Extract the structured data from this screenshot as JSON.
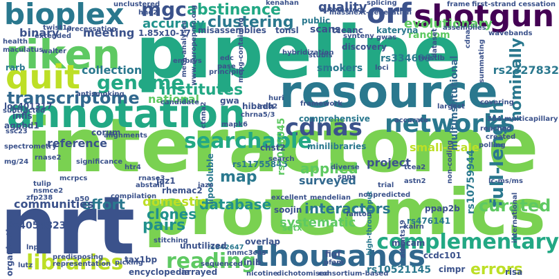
{
  "words": [
    {
      "text": "interactome",
      "color": "#7ad151"
    },
    {
      "text": "pipeline",
      "color": "#22a884"
    },
    {
      "text": "proteomics",
      "color": "#7ad151"
    },
    {
      "text": "nrt",
      "color": "#3b528b"
    },
    {
      "text": "resource",
      "color": "#2a788e"
    },
    {
      "text": "annotation",
      "color": "#22a884"
    },
    {
      "text": "riken",
      "color": "#5ec962"
    },
    {
      "text": "shotgun",
      "color": "#440154"
    },
    {
      "text": "bioplex",
      "color": "#2a788e"
    },
    {
      "text": "thousands",
      "color": "#31688e"
    },
    {
      "text": "quit",
      "color": "#bddf26"
    },
    {
      "text": "networks",
      "color": "#2a788e"
    },
    {
      "text": "orf",
      "color": "#3b528b"
    },
    {
      "text": "cdnas",
      "color": "#3b528b"
    },
    {
      "text": "genome",
      "color": "#22a884"
    },
    {
      "text": "searchable",
      "color": "#22a884"
    },
    {
      "text": "complementary",
      "color": "#22a884"
    },
    {
      "text": "libraries",
      "color": "#bddf26"
    },
    {
      "text": "reading",
      "color": "#5ec962"
    },
    {
      "text": "mgc",
      "color": "#3b528b"
    },
    {
      "text": "transcriptome",
      "color": "#31688e"
    },
    {
      "text": "abstinence",
      "color": "#22a884"
    },
    {
      "text": "clustering",
      "color": "#2a788e"
    },
    {
      "text": "quality",
      "color": "#3b528b"
    },
    {
      "text": "institutes",
      "color": "#22a884"
    },
    {
      "text": "full-length",
      "color": "#2a788e"
    },
    {
      "text": "nominally",
      "color": "#2a788e"
    },
    {
      "text": "accuracy",
      "color": "#21918c"
    },
    {
      "text": "curated",
      "color": "#5ec962"
    },
    {
      "text": "interactors",
      "color": "#2a788e"
    },
    {
      "text": "database",
      "color": "#21918c"
    },
    {
      "text": "effort",
      "color": "#2a788e"
    },
    {
      "text": "map",
      "color": "#2a788e"
    },
    {
      "text": "clones",
      "color": "#21918c"
    },
    {
      "text": "pairs",
      "color": "#21918c"
    },
    {
      "text": "applied",
      "color": "#5ec962"
    },
    {
      "text": "systematic",
      "color": "#5ec962"
    },
    {
      "text": "domestic",
      "color": "#bddf26"
    },
    {
      "text": "errors",
      "color": "#bddf26"
    },
    {
      "text": "binary",
      "color": "#3b528b"
    },
    {
      "text": "meeting",
      "color": "#3b528b"
    },
    {
      "text": "evolutionary",
      "color": "#5ec962"
    },
    {
      "text": "collection",
      "color": "#2a788e"
    },
    {
      "text": "national",
      "color": "#5ec962"
    },
    {
      "text": "reference",
      "color": "#3b528b"
    },
    {
      "text": "communities",
      "color": "#3b528b"
    },
    {
      "text": "surveyed",
      "color": "#31688e"
    },
    {
      "text": "smokers",
      "color": "#2a788e"
    },
    {
      "text": "scans",
      "color": "#3b528b"
    },
    {
      "text": "random",
      "color": "#5ec962"
    },
    {
      "text": "small-scale",
      "color": "#bddf26"
    },
    {
      "text": "project",
      "color": "#3b528b"
    },
    {
      "text": "comprehensive",
      "color": "#2a788e"
    },
    {
      "text": "multiinstitutional",
      "color": "#31688e"
    },
    {
      "text": "rs2327832",
      "color": "#2a788e"
    },
    {
      "text": "rs334699",
      "color": "#2a788e"
    },
    {
      "text": "rs10759944",
      "color": "#2a788e"
    },
    {
      "text": "rs11755845",
      "color": "#2a788e"
    },
    {
      "text": "rs2046045",
      "color": "#5ec962"
    },
    {
      "text": "rs4054823",
      "color": "#3b528b"
    },
    {
      "text": "rs476141",
      "color": "#2a788e"
    },
    {
      "text": "rs842647",
      "color": "#2a788e"
    },
    {
      "text": "rs10521145",
      "color": "#2a788e"
    },
    {
      "text": "1.85x10-17",
      "color": "#3b528b"
    },
    {
      "text": "misassemblies",
      "color": "#3b528b"
    },
    {
      "text": "public",
      "color": "#2a788e"
    },
    {
      "text": "tonsl",
      "color": "#3b528b"
    },
    {
      "text": "tceanc",
      "color": "#3b528b"
    },
    {
      "text": "kateryna",
      "color": "#2a788e"
    },
    {
      "text": "discovery",
      "color": "#3b528b"
    },
    {
      "text": "ppap2b",
      "color": "#3b528b"
    },
    {
      "text": "macam",
      "color": "#3b528b"
    },
    {
      "text": "ccdc101",
      "color": "#3b528b"
    },
    {
      "text": "cimpr",
      "color": "#3b528b"
    },
    {
      "text": "risa",
      "color": "#3b528b"
    },
    {
      "text": "jaz1",
      "color": "#3b528b"
    },
    {
      "text": "rhemac2",
      "color": "#3b528b"
    },
    {
      "text": "liposoluble",
      "color": "#2a788e"
    },
    {
      "text": "minilibraries",
      "color": "#2a788e"
    },
    {
      "text": "chst2",
      "color": "#3b528b"
    },
    {
      "text": "hibadh",
      "color": "#3b528b"
    },
    {
      "text": "gwa",
      "color": "#3b528b"
    },
    {
      "text": "corum",
      "color": "#3b528b"
    },
    {
      "text": "agphd1",
      "color": "#3b528b"
    },
    {
      "text": "infls",
      "color": "#3b528b"
    },
    {
      "text": "loc401317",
      "color": "#3b528b"
    },
    {
      "text": "rarb",
      "color": "#2a788e"
    },
    {
      "text": "unutilized",
      "color": "#3b528b"
    },
    {
      "text": "inib",
      "color": "#3b528b"
    },
    {
      "text": "overlap",
      "color": "#3b528b"
    },
    {
      "text": "soojin",
      "color": "#3b528b"
    },
    {
      "text": "encyclopedia",
      "color": "#3b528b"
    },
    {
      "text": "arrayed",
      "color": "#3b528b"
    },
    {
      "text": "organization",
      "color": "#3b528b"
    },
    {
      "text": "tax1bp",
      "color": "#3b528b"
    },
    {
      "text": "setx",
      "color": "#5ec962"
    },
    {
      "text": "figf",
      "color": "#3b528b"
    },
    {
      "text": "kalrn",
      "color": "#3b528b"
    },
    {
      "text": "lutz",
      "color": "#3b528b"
    },
    {
      "text": "lnp",
      "color": "#3b528b"
    },
    {
      "text": "tulip",
      "color": "#3b528b"
    },
    {
      "text": "zfp238",
      "color": "#3b528b"
    },
    {
      "text": "n50",
      "color": "#3b528b"
    },
    {
      "text": "abstain",
      "color": "#3b528b"
    },
    {
      "text": "htr4",
      "color": "#3b528b"
    },
    {
      "text": "rnase3",
      "color": "#3b528b"
    },
    {
      "text": "tcea2",
      "color": "#3b528b"
    },
    {
      "text": "astn2",
      "color": "#3b528b"
    },
    {
      "text": "trial",
      "color": "#3b528b"
    },
    {
      "text": "nonpredicted",
      "color": "#3b528b"
    },
    {
      "text": "mendelian",
      "color": "#3b528b"
    },
    {
      "text": "excellent",
      "color": "#3b528b"
    },
    {
      "text": "snps",
      "color": "#3b528b"
    },
    {
      "text": "diverse",
      "color": "#3b528b"
    },
    {
      "text": "search",
      "color": "#3b528b"
    },
    {
      "text": "mapk6",
      "color": "#3b528b"
    },
    {
      "text": "framework",
      "color": "#3b528b"
    },
    {
      "text": "ireb2",
      "color": "#3b528b"
    },
    {
      "text": "candidate",
      "color": "#3b528b"
    },
    {
      "text": "antismoking",
      "color": "#3b528b"
    },
    {
      "text": "subtracted",
      "color": "#3b528b"
    },
    {
      "text": "loci",
      "color": "#3b528b"
    },
    {
      "text": "stubls",
      "color": "#3b528b"
    },
    {
      "text": "hybridization",
      "color": "#3b528b"
    },
    {
      "text": "pase",
      "color": "#3b528b"
    },
    {
      "text": "embrys",
      "color": "#3b528b"
    },
    {
      "text": "twistlb",
      "color": "#3b528b"
    },
    {
      "text": "largest",
      "color": "#3b528b"
    },
    {
      "text": "covering",
      "color": "#3b528b"
    },
    {
      "text": "reached",
      "color": "#3b528b"
    },
    {
      "text": "created",
      "color": "#3b528b"
    },
    {
      "text": "polling",
      "color": "#3b528b"
    },
    {
      "text": "384-multicapillary",
      "color": "#3b528b"
    },
    {
      "text": "lc-ms/ms",
      "color": "#3b528b"
    },
    {
      "text": "non-coding",
      "color": "#3b528b"
    },
    {
      "text": "international",
      "color": "#3b528b"
    },
    {
      "text": "high-throughput",
      "color": "#2a788e"
    },
    {
      "text": "adamts19",
      "color": "#3b528b"
    },
    {
      "text": "consortium-based",
      "color": "#3b528b"
    },
    {
      "text": "dichotomised",
      "color": "#3b528b"
    },
    {
      "text": "nicotine",
      "color": "#3b528b"
    },
    {
      "text": "sequenced",
      "color": "#3b528b"
    },
    {
      "text": "representation",
      "color": "#3b528b"
    },
    {
      "text": "picking",
      "color": "#3b528b"
    },
    {
      "text": "stitching",
      "color": "#3b528b"
    },
    {
      "text": "mcrpcs",
      "color": "#3b528b"
    },
    {
      "text": "predisposing",
      "color": "#3b528b"
    },
    {
      "text": "nsmce2",
      "color": "#3b528b"
    },
    {
      "text": "significance",
      "color": "#3b528b"
    },
    {
      "text": "rnase2",
      "color": "#3b528b"
    },
    {
      "text": "spectrometry",
      "color": "#3b528b"
    },
    {
      "text": "mg/24",
      "color": "#3b528b"
    },
    {
      "text": "alignments",
      "color": "#3b528b"
    },
    {
      "text": "accurate",
      "color": "#3b528b"
    },
    {
      "text": "dataset",
      "color": "#3b528b"
    },
    {
      "text": "automated",
      "color": "#3b528b"
    },
    {
      "text": "next-generation",
      "color": "#3b528b"
    },
    {
      "text": "first-strand cessation",
      "color": "#3b528b"
    },
    {
      "text": "mass",
      "color": "#3b528b"
    },
    {
      "text": "splicing",
      "color": "#3b528b"
    },
    {
      "text": "unclustered",
      "color": "#3b528b"
    },
    {
      "text": "hne2",
      "color": "#3b528b"
    },
    {
      "text": "twist1a",
      "color": "#3b528b"
    },
    {
      "text": "precessation",
      "color": "#3b528b"
    },
    {
      "text": "extended",
      "color": "#3b528b"
    },
    {
      "text": "health",
      "color": "#3b528b"
    },
    {
      "text": "maculatus",
      "color": "#3b528b"
    },
    {
      "text": "walter",
      "color": "#3b528b"
    },
    {
      "text": "synteny",
      "color": "#3b528b"
    },
    {
      "text": "gwas",
      "color": "#3b528b"
    },
    {
      "text": "assemblies",
      "color": "#3b528b"
    },
    {
      "text": "wavebands",
      "color": "#3b528b"
    },
    {
      "text": "ctnna2",
      "color": "#3b528b"
    },
    {
      "text": "fanton",
      "color": "#3b528b"
    },
    {
      "text": "chrna5/3",
      "color": "#3b528b"
    },
    {
      "text": "principle",
      "color": "#3b528b"
    },
    {
      "text": "meta-analyses",
      "color": "#3b528b"
    },
    {
      "text": "www.europepmc.org",
      "color": "#3b528b"
    },
    {
      "text": "mcpg-containing",
      "color": "#3b528b"
    },
    {
      "text": "edc",
      "color": "#3b528b"
    },
    {
      "text": "huri",
      "color": "#3b528b"
    },
    {
      "text": "summating",
      "color": "#3b528b"
    },
    {
      "text": "cdna",
      "color": "#3b528b"
    },
    {
      "text": "kenahan",
      "color": "#3b528b"
    },
    {
      "text": "frame",
      "color": "#3b528b"
    },
    {
      "text": "nnmc3c4s",
      "color": "#3b528b"
    },
    {
      "text": "pfam",
      "color": "#3b528b"
    },
    {
      "text": "jazs",
      "color": "#3b528b"
    },
    {
      "text": "ssc23",
      "color": "#3b528b"
    },
    {
      "text": "compilation",
      "color": "#3b528b"
    }
  ]
}
